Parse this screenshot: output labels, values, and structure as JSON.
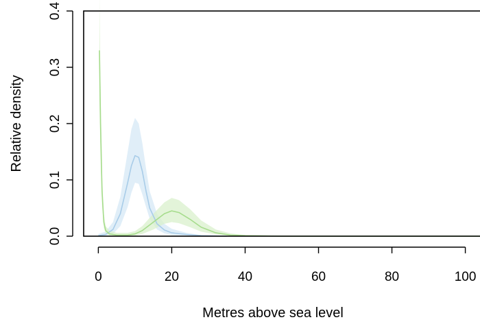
{
  "chart_data": {
    "type": "line",
    "title": "",
    "xlabel": "Metres above sea level",
    "ylabel": "Relative density",
    "xlim": [
      -4,
      104
    ],
    "ylim": [
      0,
      0.4
    ],
    "x_ticks": [
      "0",
      "20",
      "40",
      "60",
      "80",
      "100"
    ],
    "y_ticks": [
      "0.0",
      "0.1",
      "0.2",
      "0.3",
      "0.4"
    ],
    "grid": false,
    "legend": "none",
    "series": [
      {
        "color": "#a8cce8",
        "band_color": "#d6e8f6",
        "x": [
          0,
          2,
          4,
          6,
          8,
          9,
          10,
          11,
          12,
          13,
          14,
          16,
          18,
          20,
          24,
          28,
          35
        ],
        "y": [
          0.001,
          0.003,
          0.012,
          0.04,
          0.095,
          0.125,
          0.143,
          0.14,
          0.115,
          0.08,
          0.05,
          0.022,
          0.011,
          0.006,
          0.003,
          0.001,
          0
        ],
        "upper": [
          0.004,
          0.008,
          0.025,
          0.07,
          0.15,
          0.19,
          0.21,
          0.2,
          0.165,
          0.12,
          0.08,
          0.04,
          0.022,
          0.013,
          0.006,
          0.002,
          0.001
        ],
        "lower": [
          0,
          0.001,
          0.004,
          0.018,
          0.052,
          0.077,
          0.095,
          0.093,
          0.074,
          0.052,
          0.031,
          0.012,
          0.005,
          0.002,
          0.001,
          0,
          0
        ]
      },
      {
        "color": "#a6dc8c",
        "band_color": "#d9f0cc",
        "x": [
          0.3,
          0.6,
          1,
          1.5,
          2,
          3,
          5,
          8,
          10,
          12,
          15,
          18,
          20,
          22,
          25,
          28,
          32,
          36,
          40,
          50,
          60,
          80,
          104
        ],
        "y": [
          0.33,
          0.2,
          0.08,
          0.025,
          0.01,
          0.004,
          0.002,
          0.002,
          0.004,
          0.01,
          0.025,
          0.04,
          0.045,
          0.042,
          0.03,
          0.016,
          0.006,
          0.002,
          0.001,
          0,
          0,
          0,
          0
        ],
        "upper": [
          0.43,
          0.27,
          0.11,
          0.04,
          0.018,
          0.01,
          0.006,
          0.006,
          0.009,
          0.018,
          0.04,
          0.06,
          0.068,
          0.064,
          0.048,
          0.028,
          0.012,
          0.005,
          0.002,
          0.001,
          0,
          0,
          0
        ],
        "lower": [
          0.24,
          0.14,
          0.055,
          0.015,
          0.005,
          0.001,
          0,
          0,
          0.001,
          0.004,
          0.012,
          0.022,
          0.025,
          0.023,
          0.016,
          0.008,
          0.003,
          0.001,
          0,
          0,
          0,
          0,
          0
        ]
      }
    ]
  }
}
